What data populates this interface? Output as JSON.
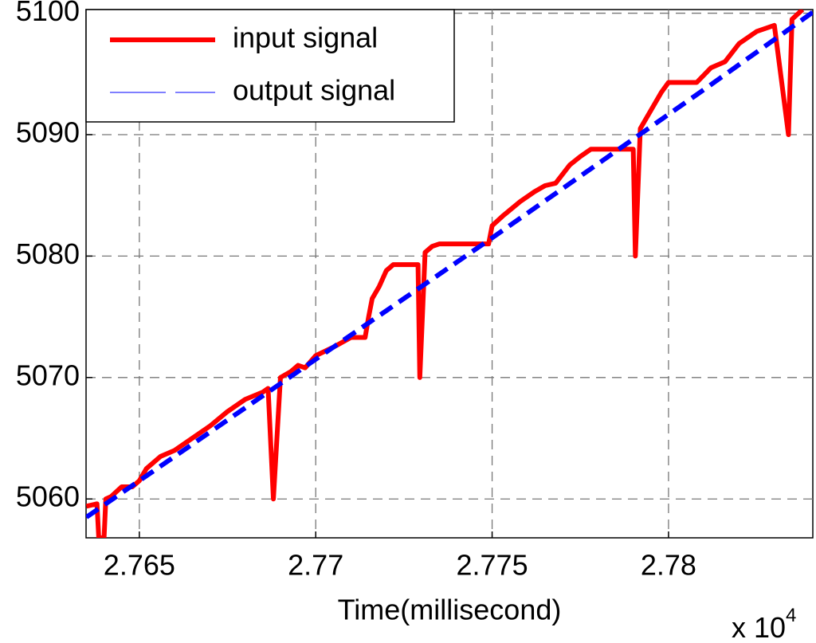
{
  "chart_data": {
    "type": "line",
    "x_label": "Time(millisecond)",
    "x_multiplier": {
      "text": "x 10",
      "exponent": "4"
    },
    "xlim": [
      2.76349,
      2.78409
    ],
    "xticks": [
      2.765,
      2.77,
      2.775,
      2.78
    ],
    "ylim": [
      5056.8,
      5100.3
    ],
    "yticks": [
      5060,
      5070,
      5080,
      5090,
      5100
    ],
    "grid": true,
    "legend": "upper left",
    "series": [
      {
        "name": "input signal",
        "color": "#ff0000",
        "style": "solid",
        "x": [
          2.7635,
          2.7638,
          2.76385,
          2.764,
          2.76405,
          2.7642,
          2.7645,
          2.7648,
          2.765,
          2.7652,
          2.7656,
          2.766,
          2.7665,
          2.767,
          2.7675,
          2.768,
          2.7685,
          2.76865,
          2.7688,
          2.769,
          2.7693,
          2.7695,
          2.7697,
          2.77,
          2.7705,
          2.771,
          2.7714,
          2.7715,
          2.7716,
          2.7718,
          2.772,
          2.7722,
          2.7729,
          2.77295,
          2.7731,
          2.7733,
          2.7735,
          2.7749,
          2.775,
          2.7753,
          2.7758,
          2.7762,
          2.7765,
          2.7768,
          2.7772,
          2.7775,
          2.7778,
          2.779,
          2.77906,
          2.7792,
          2.7795,
          2.7798,
          2.78,
          2.7808,
          2.7812,
          2.7816,
          2.782,
          2.7825,
          2.783,
          2.7834,
          2.7835,
          2.7838
        ],
        "values": [
          5059.4,
          5059.6,
          5056.8,
          5056.8,
          5060,
          5060.2,
          5061,
          5061,
          5061.5,
          5062.5,
          5063.5,
          5064,
          5065,
          5066,
          5067.2,
          5068.2,
          5068.8,
          5069.1,
          5060,
          5070,
          5070.5,
          5071,
          5070.8,
          5071.8,
          5072.5,
          5073.3,
          5073.3,
          5075,
          5076.5,
          5077.5,
          5078.8,
          5079.3,
          5079.3,
          5070,
          5080.3,
          5080.8,
          5081,
          5081,
          5082.5,
          5083.3,
          5084.5,
          5085.3,
          5085.8,
          5086,
          5087.5,
          5088.2,
          5088.8,
          5088.8,
          5080,
          5090.5,
          5092,
          5093.5,
          5094.3,
          5094.3,
          5095.5,
          5096,
          5097.5,
          5098.5,
          5099,
          5090,
          5099.5,
          5100.3
        ]
      },
      {
        "name": "output signal",
        "color": "#0000ff",
        "style": "dashed",
        "x": [
          2.7635,
          2.766,
          2.769,
          2.772,
          2.775,
          2.778,
          2.781,
          2.7841
        ],
        "values": [
          5058.5,
          5063.5,
          5069.5,
          5075.5,
          5081.5,
          5087.6,
          5093.7,
          5100.1
        ]
      }
    ]
  }
}
